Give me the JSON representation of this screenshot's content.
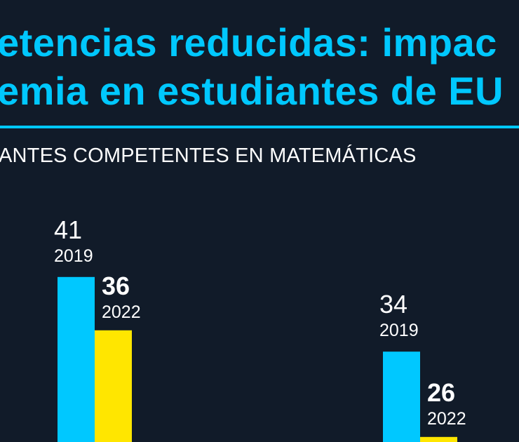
{
  "title_lines": [
    "etencias reducidas: impac",
    "emia en estudiantes de EU"
  ],
  "subtitle": "ANTES COMPETENTES EN MATEMÁTICAS",
  "colors": {
    "background": "#111b29",
    "accent": "#00c8ff",
    "series_2019": "#00c8ff",
    "series_2022": "#ffe600"
  },
  "chart_data": {
    "type": "bar",
    "title": "ANTES COMPETENTES EN MATEMÁTICAS",
    "categories": [
      "",
      ""
    ],
    "series": [
      {
        "name": "2019",
        "values": [
          41,
          34
        ]
      },
      {
        "name": "2022",
        "values": [
          36,
          26
        ]
      }
    ],
    "grid": false,
    "legend": "none"
  }
}
